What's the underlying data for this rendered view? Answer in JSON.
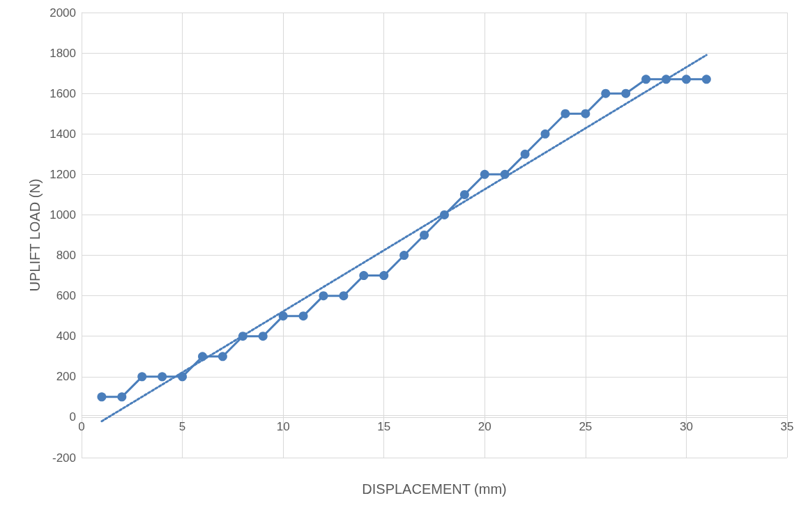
{
  "chart_data": {
    "type": "line",
    "xlabel": "DISPLACEMENT (mm)",
    "ylabel": "UPLIFT LOAD (N)",
    "xlim": [
      0,
      35
    ],
    "xticks": [
      0,
      5,
      10,
      15,
      20,
      25,
      30,
      35
    ],
    "ylim": [
      -200,
      2000
    ],
    "yticks": [
      -200,
      0,
      200,
      400,
      600,
      800,
      1000,
      1200,
      1400,
      1600,
      1800,
      2000
    ],
    "grid": true,
    "series": [
      {
        "color": "#4a7ebb",
        "marker": "circle",
        "line_style": "solid",
        "x": [
          1,
          2,
          3,
          4,
          5,
          6,
          7,
          8,
          9,
          10,
          11,
          12,
          13,
          14,
          15,
          16,
          17,
          18,
          19,
          20,
          21,
          22,
          23,
          24,
          25,
          26,
          27,
          28,
          29,
          30,
          31
        ],
        "values": [
          100,
          100,
          200,
          200,
          200,
          300,
          300,
          400,
          400,
          500,
          500,
          600,
          600,
          700,
          700,
          800,
          900,
          1000,
          1100,
          1200,
          1200,
          1300,
          1400,
          1500,
          1500,
          1600,
          1600,
          1670,
          1670,
          1670,
          1670
        ]
      },
      {
        "color": "#4a7ebb",
        "marker": "none",
        "line_style": "dotted",
        "x": [
          1,
          31
        ],
        "values": [
          -20,
          1790
        ]
      }
    ]
  }
}
